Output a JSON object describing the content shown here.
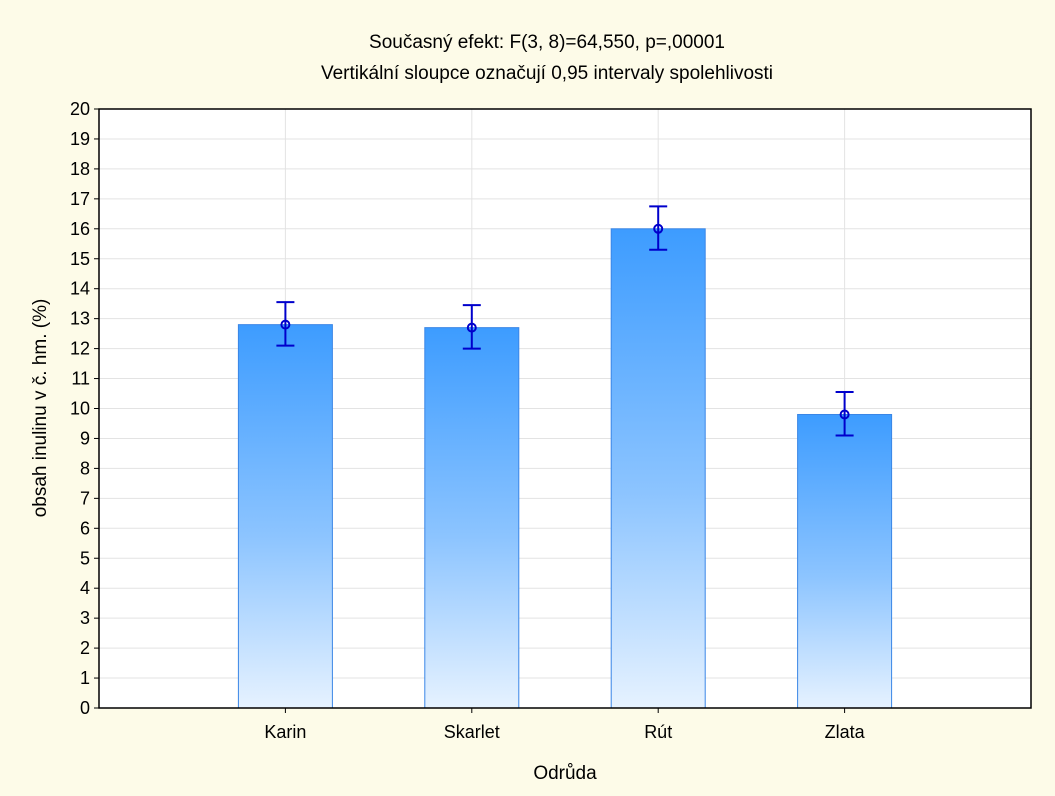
{
  "chart_data": {
    "type": "bar",
    "title": "Současný efekt: F(3, 8)=64,550, p=,00001",
    "subtitle": "Vertikální sloupce označují 0,95 intervaly spolehlivosti",
    "xlabel": "Odrůda",
    "ylabel": "obsah inulinu v č. hm. (%)",
    "categories": [
      "Karin",
      "Skarlet",
      "Rút",
      "Zlata"
    ],
    "values": [
      12.8,
      12.7,
      16.0,
      9.8
    ],
    "ci_lower": [
      12.1,
      12.0,
      15.3,
      9.1
    ],
    "ci_upper": [
      13.55,
      13.45,
      16.75,
      10.55
    ],
    "ylim": [
      0,
      20
    ],
    "yticks": [
      "0",
      "1",
      "2",
      "3",
      "4",
      "5",
      "6",
      "7",
      "8",
      "9",
      "10",
      "11",
      "12",
      "13",
      "14",
      "15",
      "16",
      "17",
      "18",
      "19",
      "20"
    ],
    "grid": true,
    "colors": {
      "background": "#fdfbe8",
      "plot_background": "#ffffff",
      "bar_top": "#3d9cff",
      "bar_bottom": "#e6f2ff",
      "bar_edge": "#3a86e6",
      "error_bar": "#0000cc",
      "grid": "#e3e3e3"
    }
  }
}
